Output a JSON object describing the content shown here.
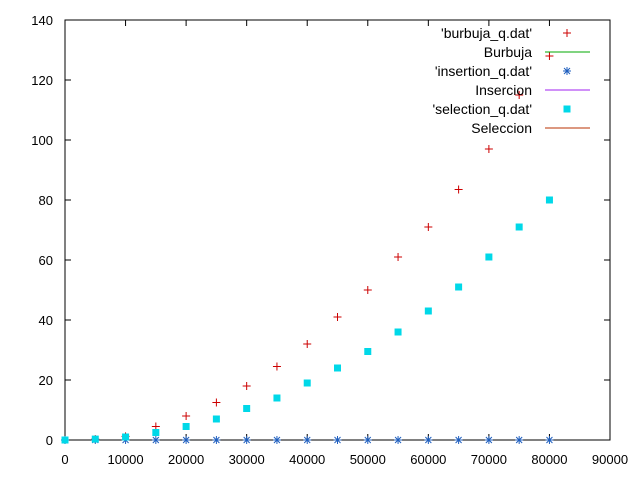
{
  "chart_data": {
    "type": "scatter",
    "xlim": [
      0,
      90000
    ],
    "ylim": [
      0,
      140
    ],
    "xticks": [
      0,
      10000,
      20000,
      30000,
      40000,
      50000,
      60000,
      70000,
      80000,
      90000
    ],
    "yticks": [
      0,
      20,
      40,
      60,
      80,
      100,
      120,
      140
    ],
    "grid": false,
    "legend_position": "top-right",
    "series": [
      {
        "name": "'burbuja_q.dat'",
        "style": "points",
        "marker": "plus",
        "color": "#cc0000",
        "x": [
          0,
          5000,
          10000,
          15000,
          20000,
          25000,
          30000,
          35000,
          40000,
          45000,
          50000,
          55000,
          60000,
          65000,
          70000,
          75000,
          80000
        ],
        "y": [
          0,
          0.3,
          1.2,
          4.5,
          8,
          12.5,
          18,
          24.5,
          32,
          41,
          50,
          61,
          71,
          83.5,
          97,
          115,
          128
        ]
      },
      {
        "name": "Burbuja",
        "style": "line",
        "color": "#00aa00",
        "x": [],
        "y": []
      },
      {
        "name": "'insertion_q.dat'",
        "style": "points",
        "marker": "asterisk",
        "color": "#1f5fbf",
        "x": [
          0,
          5000,
          10000,
          15000,
          20000,
          25000,
          30000,
          35000,
          40000,
          45000,
          50000,
          55000,
          60000,
          65000,
          70000,
          75000,
          80000
        ],
        "y": [
          0,
          0,
          0,
          0,
          0,
          0,
          0,
          0,
          0,
          0,
          0,
          0,
          0,
          0,
          0,
          0,
          0
        ]
      },
      {
        "name": "Insercion",
        "style": "line",
        "color": "#a020f0",
        "x": [],
        "y": []
      },
      {
        "name": "'selection_q.dat'",
        "style": "points",
        "marker": "square",
        "color": "#00d8e8",
        "x": [
          0,
          5000,
          10000,
          15000,
          20000,
          25000,
          30000,
          35000,
          40000,
          45000,
          50000,
          55000,
          60000,
          65000,
          70000,
          75000,
          80000
        ],
        "y": [
          0,
          0.3,
          1,
          2.5,
          4.5,
          7,
          10.5,
          14,
          19,
          24,
          29.5,
          36,
          43,
          51,
          61,
          71,
          80
        ]
      },
      {
        "name": "Seleccion",
        "style": "line",
        "color": "#b83200",
        "x": [],
        "y": []
      }
    ]
  }
}
